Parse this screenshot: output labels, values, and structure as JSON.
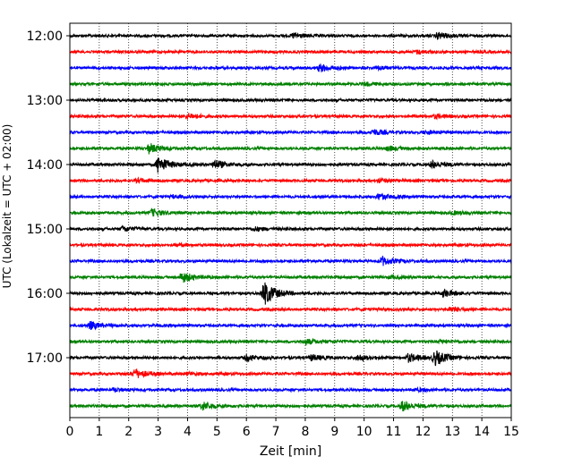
{
  "chart_data": {
    "type": "line",
    "title": "",
    "xlabel": "Zeit  [min]",
    "ylabel": "UTC (Lokalzeit = UTC + 02:00)",
    "xlim": [
      0,
      15
    ],
    "x_ticks": [
      "0",
      "1",
      "2",
      "3",
      "4",
      "5",
      "6",
      "7",
      "8",
      "9",
      "10",
      "11",
      "12",
      "13",
      "14",
      "15"
    ],
    "y_ticks": [
      "12:00",
      "13:00",
      "14:00",
      "15:00",
      "16:00",
      "17:00"
    ],
    "grid": "vertical dotted at every minute",
    "legend": "none",
    "row_minutes": 15,
    "start_time": "12:00",
    "color_cycle": [
      "#000000",
      "#ff0000",
      "#0000ff",
      "#008000"
    ],
    "series": [
      {
        "start": "12:00",
        "color": "#000000",
        "events": [
          {
            "t": 7.6,
            "amp": 0.35
          },
          {
            "t": 12.5,
            "amp": 0.4
          }
        ]
      },
      {
        "start": "12:15",
        "color": "#ff0000",
        "events": [
          {
            "t": 11.8,
            "amp": 0.2
          }
        ]
      },
      {
        "start": "12:30",
        "color": "#0000ff",
        "events": [
          {
            "t": 8.5,
            "amp": 0.45
          },
          {
            "t": 10.5,
            "amp": 0.2
          }
        ]
      },
      {
        "start": "12:45",
        "color": "#008000",
        "events": [
          {
            "t": 10.0,
            "amp": 0.2
          }
        ]
      },
      {
        "start": "13:00",
        "color": "#000000",
        "events": []
      },
      {
        "start": "13:15",
        "color": "#ff0000",
        "events": [
          {
            "t": 4.0,
            "amp": 0.3
          },
          {
            "t": 12.4,
            "amp": 0.2
          }
        ]
      },
      {
        "start": "13:30",
        "color": "#0000ff",
        "events": [
          {
            "t": 10.3,
            "amp": 0.35
          },
          {
            "t": 12.1,
            "amp": 0.2
          }
        ]
      },
      {
        "start": "13:45",
        "color": "#008000",
        "events": [
          {
            "t": 2.7,
            "amp": 0.6
          },
          {
            "t": 10.8,
            "amp": 0.25
          }
        ]
      },
      {
        "start": "14:00",
        "color": "#000000",
        "events": [
          {
            "t": 3.0,
            "amp": 1.0
          },
          {
            "t": 4.9,
            "amp": 0.55
          },
          {
            "t": 12.3,
            "amp": 0.45
          }
        ]
      },
      {
        "start": "14:15",
        "color": "#ff0000",
        "events": [
          {
            "t": 2.3,
            "amp": 0.2
          },
          {
            "t": 10.5,
            "amp": 0.2
          }
        ]
      },
      {
        "start": "14:30",
        "color": "#0000ff",
        "events": [
          {
            "t": 10.5,
            "amp": 0.35
          },
          {
            "t": 3.5,
            "amp": 0.15
          }
        ]
      },
      {
        "start": "14:45",
        "color": "#008000",
        "events": [
          {
            "t": 2.8,
            "amp": 0.45
          },
          {
            "t": 13.0,
            "amp": 0.2
          }
        ]
      },
      {
        "start": "15:00",
        "color": "#000000",
        "events": [
          {
            "t": 1.8,
            "amp": 0.3
          },
          {
            "t": 6.3,
            "amp": 0.2
          }
        ]
      },
      {
        "start": "15:15",
        "color": "#ff0000",
        "events": [
          {
            "t": 3.6,
            "amp": 0.15
          }
        ]
      },
      {
        "start": "15:30",
        "color": "#0000ff",
        "events": [
          {
            "t": 10.6,
            "amp": 0.55
          }
        ]
      },
      {
        "start": "15:45",
        "color": "#008000",
        "events": [
          {
            "t": 3.8,
            "amp": 0.65
          },
          {
            "t": 10.9,
            "amp": 0.15
          }
        ]
      },
      {
        "start": "16:00",
        "color": "#000000",
        "events": [
          {
            "t": 6.6,
            "amp": 1.5
          },
          {
            "t": 12.7,
            "amp": 0.45
          }
        ]
      },
      {
        "start": "16:15",
        "color": "#ff0000",
        "events": [
          {
            "t": 12.9,
            "amp": 0.3
          }
        ]
      },
      {
        "start": "16:30",
        "color": "#0000ff",
        "events": [
          {
            "t": 0.7,
            "amp": 0.45
          }
        ]
      },
      {
        "start": "16:45",
        "color": "#008000",
        "events": [
          {
            "t": 8.0,
            "amp": 0.35
          },
          {
            "t": 12.6,
            "amp": 0.15
          }
        ]
      },
      {
        "start": "17:00",
        "color": "#000000",
        "events": [
          {
            "t": 6.0,
            "amp": 0.35
          },
          {
            "t": 8.2,
            "amp": 0.35
          },
          {
            "t": 9.8,
            "amp": 0.35
          },
          {
            "t": 11.5,
            "amp": 0.5
          },
          {
            "t": 12.4,
            "amp": 0.9
          }
        ]
      },
      {
        "start": "17:15",
        "color": "#ff0000",
        "events": [
          {
            "t": 2.2,
            "amp": 0.6
          },
          {
            "t": 4.0,
            "amp": 0.15
          }
        ]
      },
      {
        "start": "17:30",
        "color": "#0000ff",
        "events": [
          {
            "t": 1.5,
            "amp": 0.2
          },
          {
            "t": 11.8,
            "amp": 0.15
          }
        ]
      },
      {
        "start": "17:45",
        "color": "#008000",
        "events": [
          {
            "t": 4.5,
            "amp": 0.5
          },
          {
            "t": 11.3,
            "amp": 0.6
          }
        ]
      }
    ]
  }
}
